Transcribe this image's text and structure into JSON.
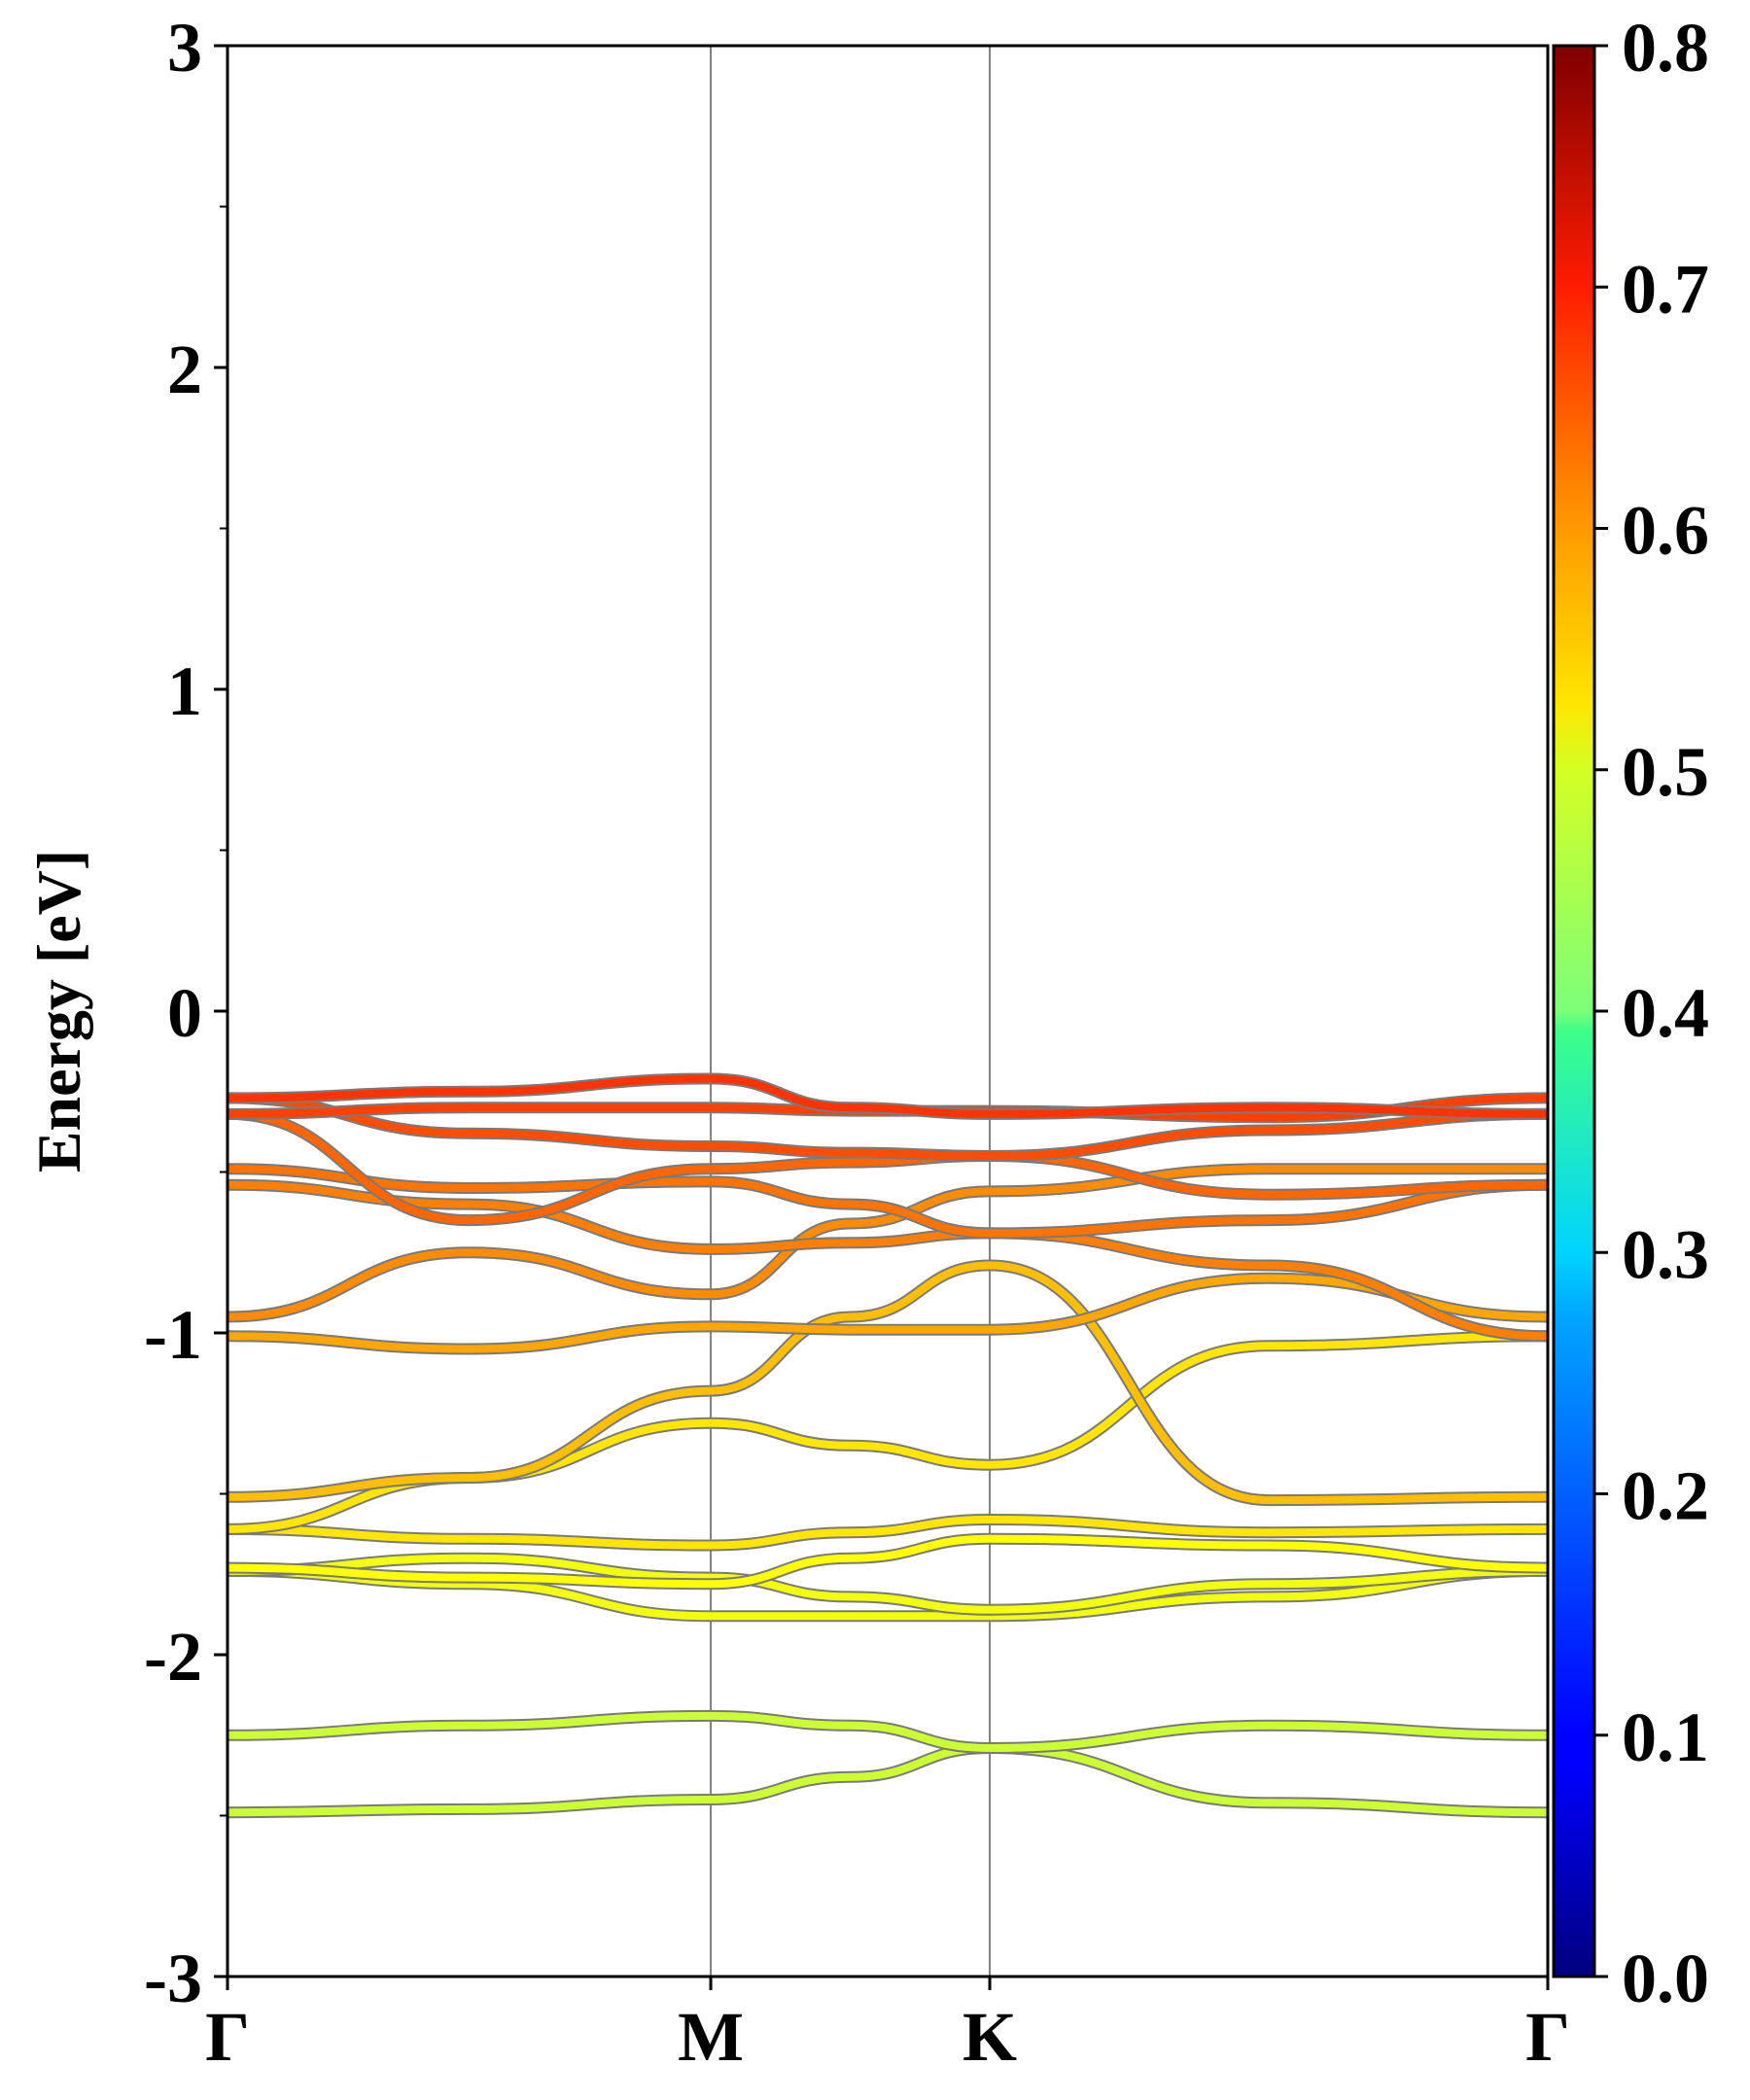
{
  "chart_data": {
    "type": "line",
    "title": "",
    "ylabel": "Energy [eV]",
    "xlabel": "",
    "ylim": [
      -3,
      3
    ],
    "yticks": [
      "3",
      "2",
      "1",
      "0",
      "-1",
      "-2",
      "-3"
    ],
    "ytick_values": [
      3,
      2,
      1,
      0,
      -1,
      -2,
      -3
    ],
    "yminor_tick_values": [
      2.5,
      1.5,
      0.5,
      -0.5,
      -1.5,
      -2.5
    ],
    "kpath": {
      "labels": [
        "Γ",
        "M",
        "K",
        "Γ"
      ],
      "positions": [
        0,
        0.866,
        1.366,
        2.366
      ]
    },
    "colorbar": {
      "colormap": "jet",
      "range": [
        0.0,
        0.8
      ],
      "ticks": [
        "0.8",
        "0.7",
        "0.6",
        "0.5",
        "0.4",
        "0.3",
        "0.2",
        "0.1",
        "0.0"
      ],
      "tick_values": [
        0.8,
        0.7,
        0.6,
        0.5,
        0.4,
        0.3,
        0.2,
        0.1,
        0.0
      ]
    },
    "grid": false,
    "band_sample_k": [
      0,
      0.433,
      0.866,
      1.116,
      1.366,
      1.866,
      2.366
    ],
    "series": [
      {
        "energies": [
          -2.49,
          -2.48,
          -2.45,
          -2.38,
          -2.29,
          -2.46,
          -2.49
        ],
        "weight": 0.46
      },
      {
        "energies": [
          -2.25,
          -2.22,
          -2.19,
          -2.22,
          -2.29,
          -2.22,
          -2.25
        ],
        "weight": 0.46
      },
      {
        "energies": [
          -1.74,
          -1.78,
          -1.88,
          -1.88,
          -1.88,
          -1.82,
          -1.74
        ],
        "weight": 0.49
      },
      {
        "energies": [
          -1.74,
          -1.7,
          -1.76,
          -1.82,
          -1.86,
          -1.78,
          -1.74
        ],
        "weight": 0.49
      },
      {
        "energies": [
          -1.73,
          -1.76,
          -1.78,
          -1.7,
          -1.64,
          -1.66,
          -1.73
        ],
        "weight": 0.5
      },
      {
        "energies": [
          -1.61,
          -1.64,
          -1.66,
          -1.62,
          -1.58,
          -1.62,
          -1.61
        ],
        "weight": 0.52
      },
      {
        "energies": [
          -1.61,
          -1.45,
          -1.28,
          -1.35,
          -1.41,
          -1.04,
          -1.01
        ],
        "weight": 0.52
      },
      {
        "energies": [
          -1.51,
          -1.45,
          -1.18,
          -0.95,
          -0.79,
          -1.52,
          -1.51
        ],
        "weight": 0.55
      },
      {
        "energies": [
          -1.01,
          -1.05,
          -0.98,
          -0.99,
          -0.99,
          -0.83,
          -0.95
        ],
        "weight": 0.57
      },
      {
        "energies": [
          -0.95,
          -0.75,
          -0.88,
          -0.66,
          -0.56,
          -0.49,
          -0.49
        ],
        "weight": 0.59
      },
      {
        "energies": [
          -0.54,
          -0.6,
          -0.74,
          -0.72,
          -0.69,
          -0.79,
          -1.01
        ],
        "weight": 0.6
      },
      {
        "energies": [
          -0.49,
          -0.55,
          -0.53,
          -0.6,
          -0.69,
          -0.65,
          -0.54
        ],
        "weight": 0.61
      },
      {
        "energies": [
          -0.32,
          -0.65,
          -0.49,
          -0.47,
          -0.45,
          -0.57,
          -0.54
        ],
        "weight": 0.62
      },
      {
        "energies": [
          -0.27,
          -0.38,
          -0.42,
          -0.44,
          -0.45,
          -0.37,
          -0.32
        ],
        "weight": 0.64
      },
      {
        "energies": [
          -0.32,
          -0.3,
          -0.3,
          -0.31,
          -0.31,
          -0.33,
          -0.27
        ],
        "weight": 0.65
      },
      {
        "energies": [
          -0.27,
          -0.25,
          -0.21,
          -0.3,
          -0.32,
          -0.3,
          -0.32
        ],
        "weight": 0.66
      }
    ]
  }
}
